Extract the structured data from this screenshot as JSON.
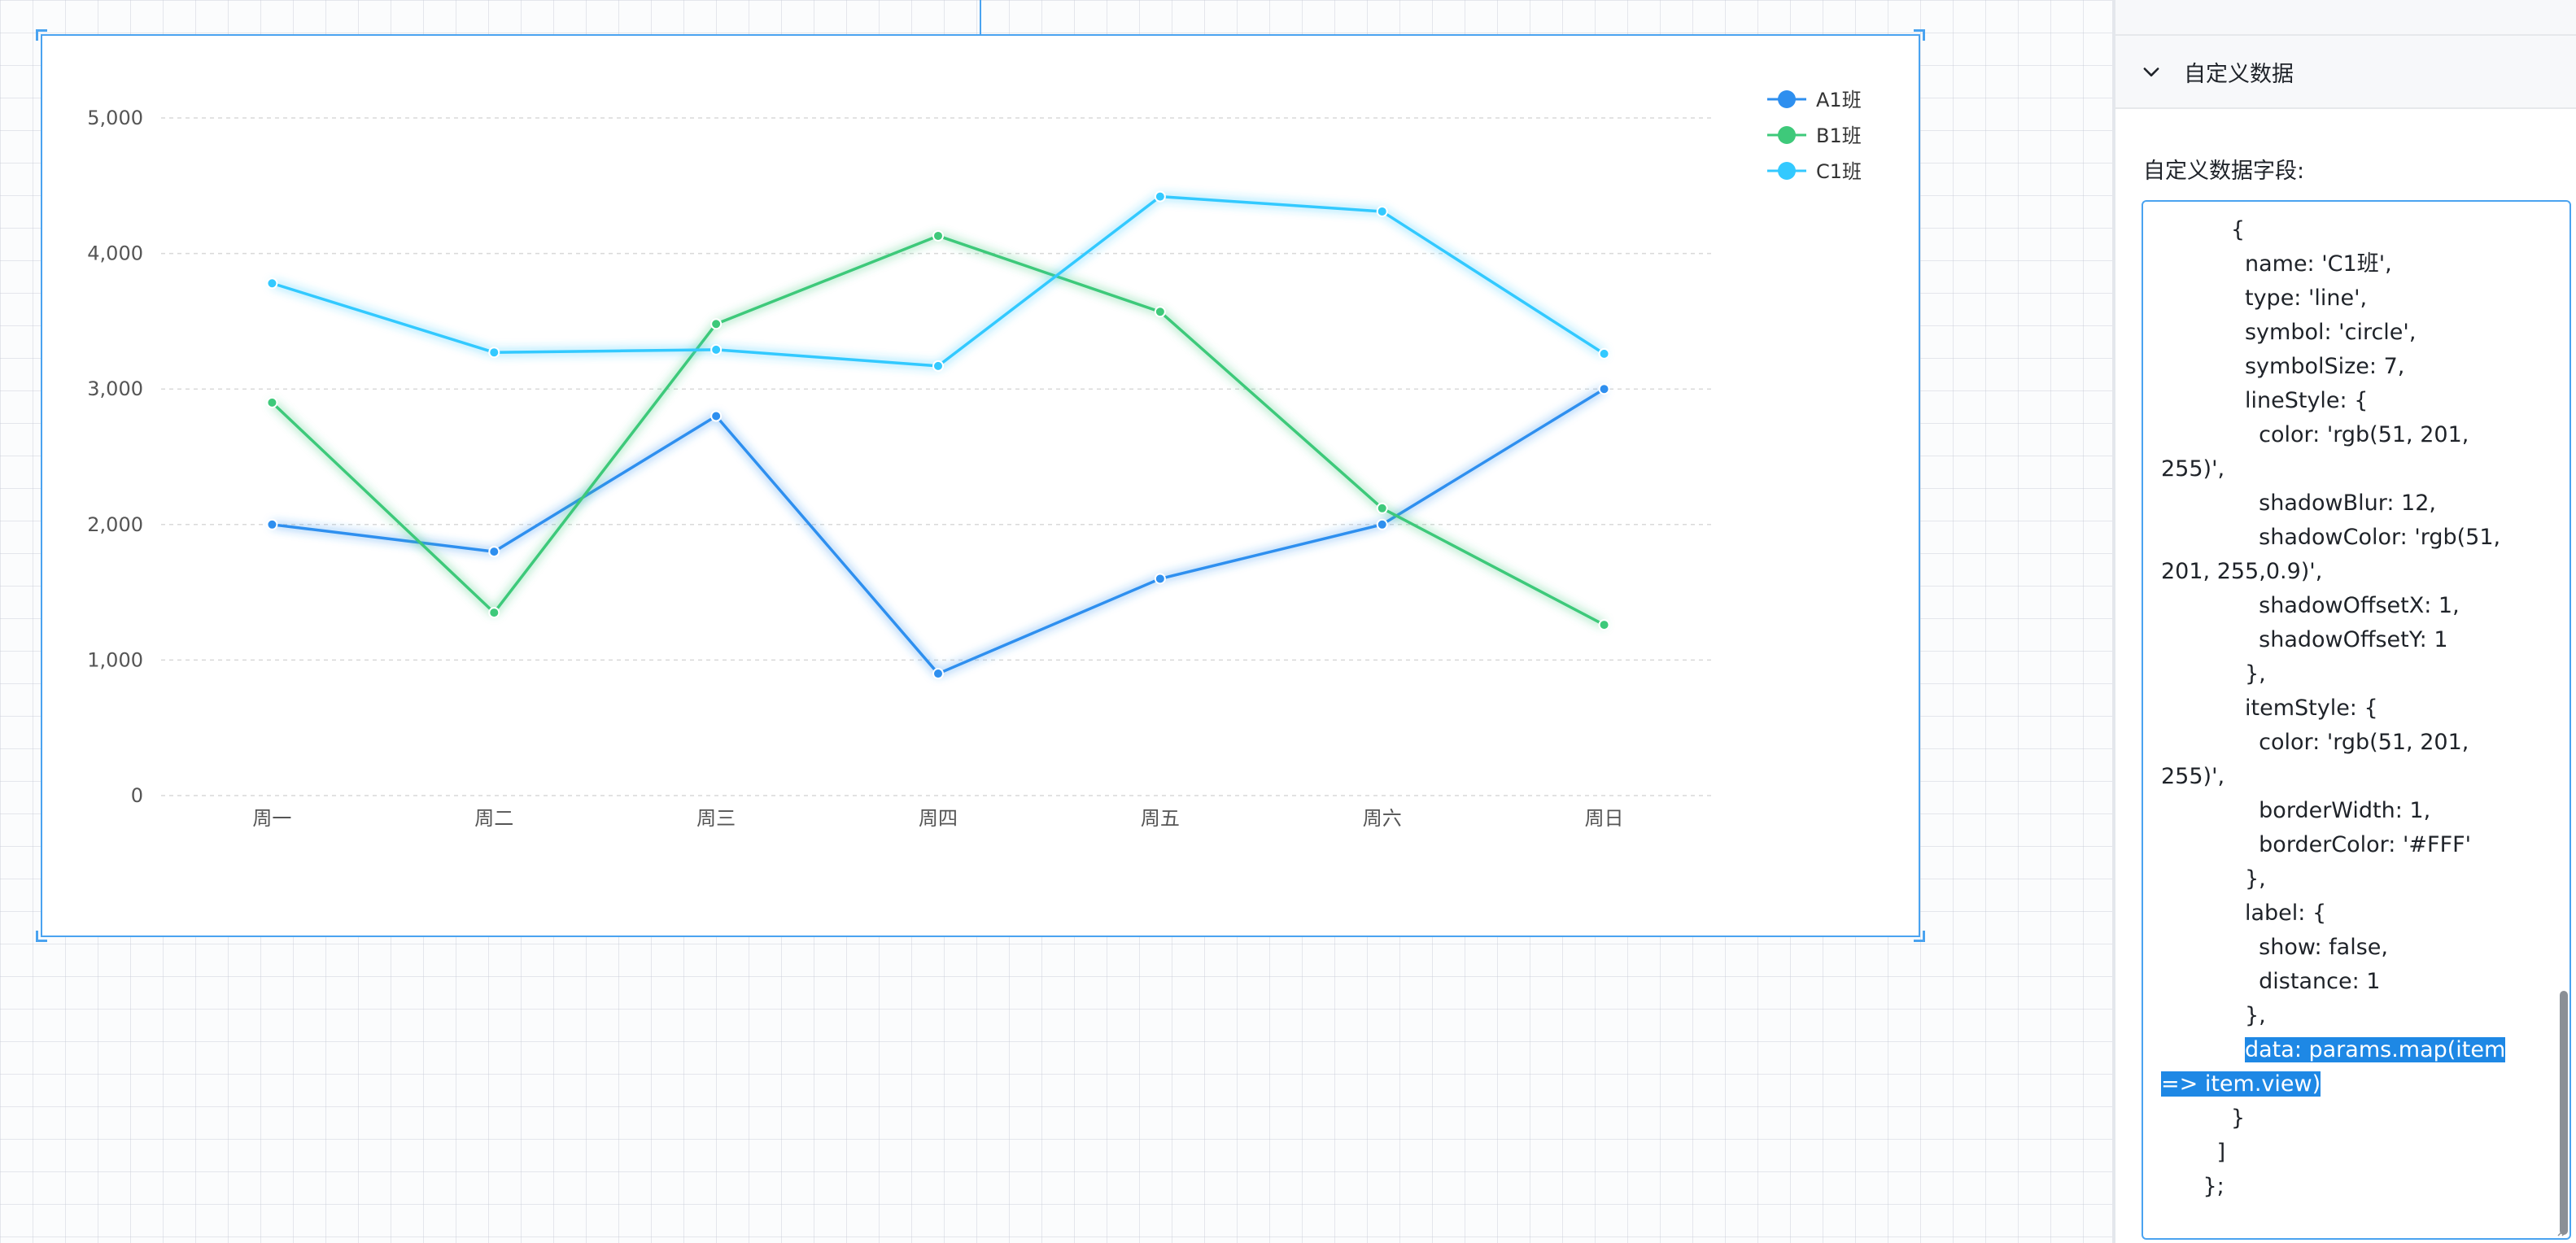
{
  "chart_data": {
    "type": "line",
    "categories": [
      "周一",
      "周二",
      "周三",
      "周四",
      "周五",
      "周六",
      "周日"
    ],
    "yticks": [
      "0",
      "1,000",
      "2,000",
      "3,000",
      "4,000",
      "5,000"
    ],
    "ylim": [
      0,
      5000
    ],
    "grid": true,
    "legend_position": "top-right",
    "series": [
      {
        "name": "A1班",
        "color": "#2e8fef",
        "values": [
          2000,
          1800,
          2800,
          900,
          1600,
          2000,
          3000
        ]
      },
      {
        "name": "B1班",
        "color": "#3ec97a",
        "values": [
          2900,
          1350,
          3480,
          4130,
          3570,
          2120,
          1260
        ]
      },
      {
        "name": "C1班",
        "color": "#33c9ff",
        "values": [
          3780,
          3270,
          3290,
          3170,
          4420,
          4310,
          3260
        ]
      }
    ]
  },
  "panel": {
    "section_title": "自定义数据",
    "field_label": "自定义数据字段:",
    "code_lines": [
      "          {",
      "            name: 'C1班',",
      "            type: 'line',",
      "            symbol: 'circle',",
      "            symbolSize: 7,",
      "            lineStyle: {",
      "              color: 'rgb(51, 201,",
      "255)',",
      "              shadowBlur: 12,",
      "              shadowColor: 'rgb(51,",
      "201, 255,0.9)',",
      "              shadowOffsetX: 1,",
      "              shadowOffsetY: 1",
      "            },",
      "            itemStyle: {",
      "              color: 'rgb(51, 201,",
      "255)',",
      "              borderWidth: 1,",
      "              borderColor: '#FFF'",
      "            },",
      "            label: {",
      "              show: false,",
      "              distance: 1",
      "            },",
      "            data: params.map(item",
      "=> item.view)",
      "          }",
      "        ]",
      "      };"
    ],
    "selection": {
      "line_24": {
        "before": "            ",
        "selected": "data: params.map(item"
      },
      "line_25": {
        "before": "",
        "selected": "=> item.view)"
      }
    }
  }
}
